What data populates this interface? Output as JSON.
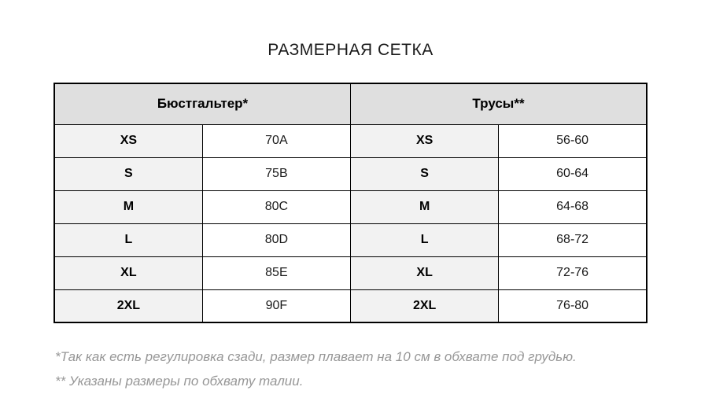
{
  "title": "РАЗМЕРНАЯ СЕТКА",
  "table": {
    "headers": {
      "bra": "Бюстгальтер*",
      "panties": "Трусы**"
    },
    "rows": [
      {
        "bra_size": "XS",
        "bra_value": "70A",
        "panty_size": "XS",
        "panty_value": "56-60"
      },
      {
        "bra_size": "S",
        "bra_value": "75B",
        "panty_size": "S",
        "panty_value": "60-64"
      },
      {
        "bra_size": "M",
        "bra_value": "80C",
        "panty_size": "M",
        "panty_value": "64-68"
      },
      {
        "bra_size": "L",
        "bra_value": "80D",
        "panty_size": "L",
        "panty_value": "68-72"
      },
      {
        "bra_size": "XL",
        "bra_value": "85E",
        "panty_size": "XL",
        "panty_value": "72-76"
      },
      {
        "bra_size": "2XL",
        "bra_value": "90F",
        "panty_size": "2XL",
        "panty_value": "76-80"
      }
    ]
  },
  "footnotes": [
    "*Так как есть регулировка сзади, размер плавает на 10 см в обхвате под грудью.",
    "** Указаны размеры по обхвату талии."
  ],
  "colors": {
    "header_background": "#dfdfdf",
    "size_cell_background": "#f2f2f2",
    "border": "#000000",
    "footnote_text": "#979797",
    "page_background": "#ffffff"
  }
}
